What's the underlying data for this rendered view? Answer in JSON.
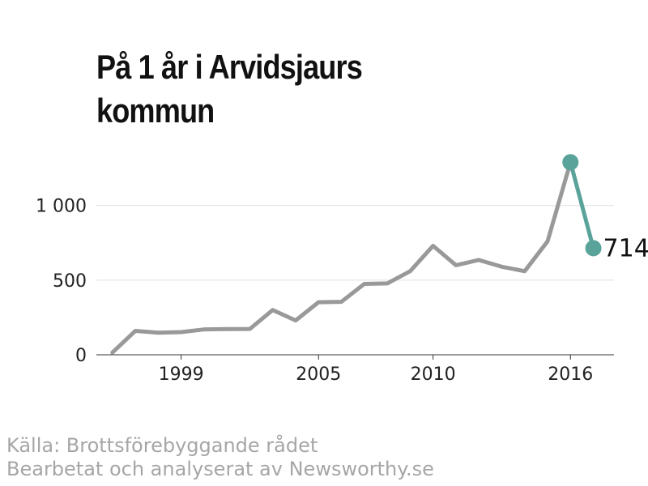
{
  "title": "På 1 år i Arvidsjaurs kommun",
  "source_line1": "Källa: Brottsförebyggande rådet",
  "source_line2": "Bearbetat och analyserat av Newsworthy.se",
  "colors": {
    "line": "#999999",
    "highlight": "#5aa39a",
    "grid": "#e0e0e0",
    "axis": "#333333"
  },
  "chart_data": {
    "type": "line",
    "title": "På 1 år i Arvidsjaurs kommun",
    "xlabel": "",
    "ylabel": "",
    "x": [
      1996,
      1997,
      1998,
      1999,
      2000,
      2001,
      2002,
      2003,
      2004,
      2005,
      2006,
      2007,
      2008,
      2009,
      2010,
      2011,
      2012,
      2013,
      2014,
      2015,
      2016,
      2017
    ],
    "values": [
      15,
      160,
      148,
      152,
      170,
      172,
      173,
      300,
      230,
      352,
      355,
      475,
      478,
      560,
      730,
      600,
      635,
      590,
      560,
      760,
      1290,
      714
    ],
    "highlight_from_index": 20,
    "end_label": "714",
    "xlim": [
      1995.3,
      2017.9
    ],
    "ylim": [
      0,
      1400
    ],
    "x_ticks": [
      1999,
      2005,
      2010,
      2016
    ],
    "x_tick_labels": [
      "1999",
      "2005",
      "2010",
      "2016"
    ],
    "y_ticks": [
      0,
      500,
      1000
    ],
    "y_tick_labels": [
      "0",
      "500",
      "1 000"
    ],
    "grid": true
  }
}
